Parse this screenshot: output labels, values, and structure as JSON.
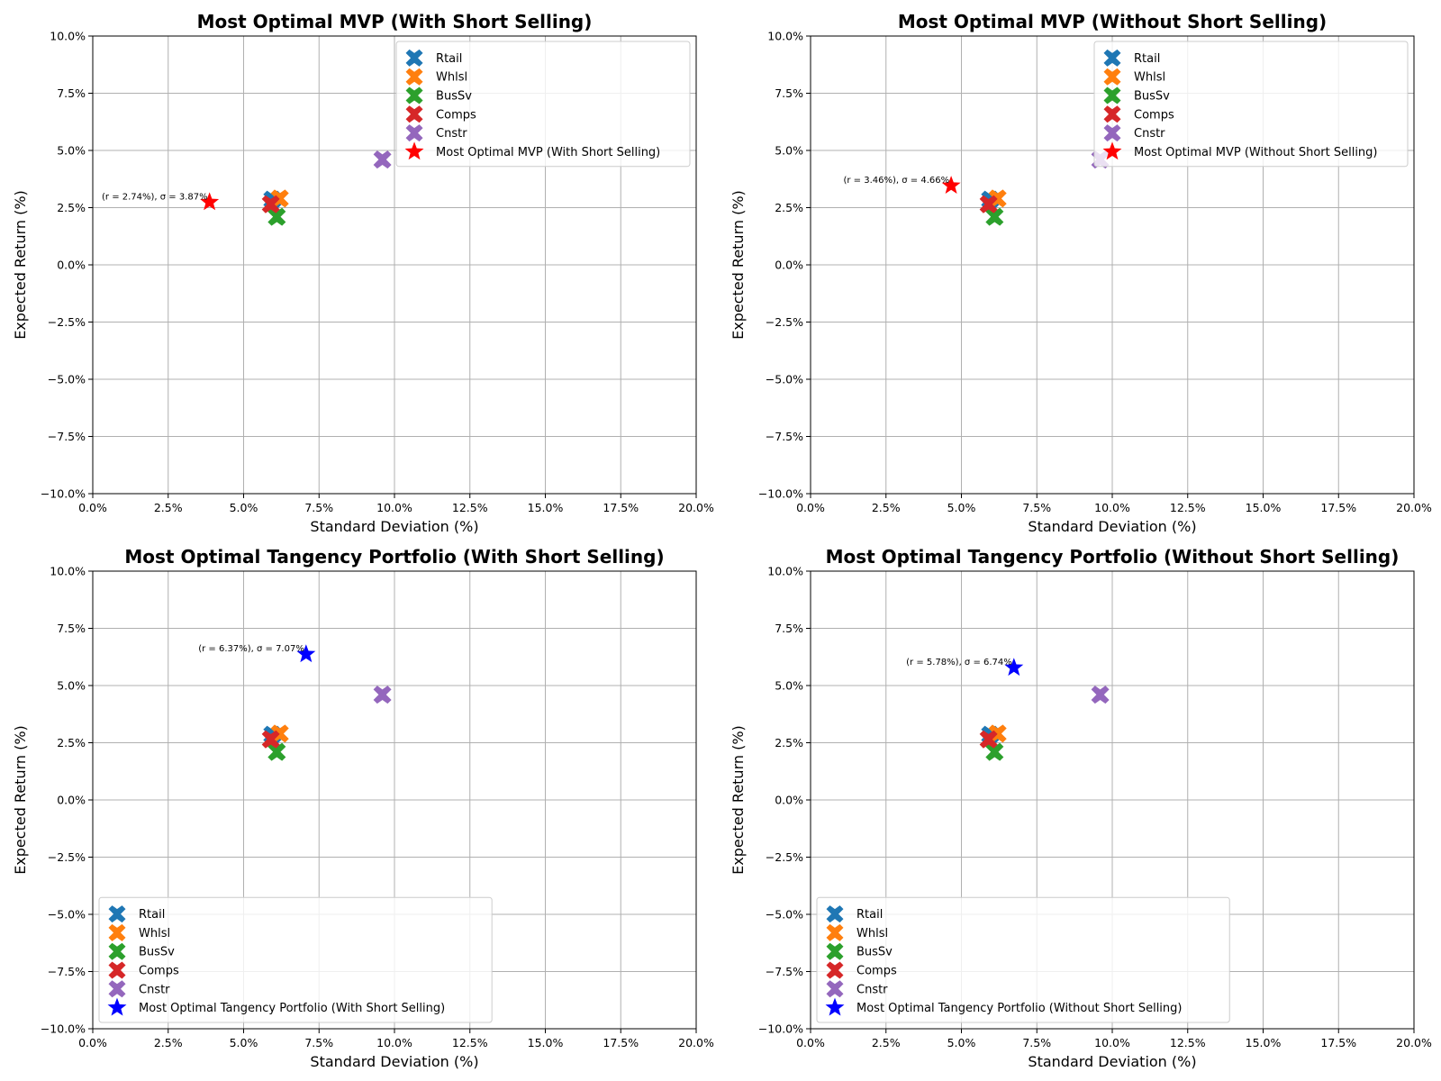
{
  "chart_data": [
    {
      "type": "scatter",
      "title": "Most Optimal MVP (With Short Selling)",
      "xlabel": "Standard Deviation (%)",
      "ylabel": "Expected Return (%)",
      "xlim": [
        0,
        20
      ],
      "ylim": [
        -10,
        10
      ],
      "xticks": [
        "0.0%",
        "2.5%",
        "5.0%",
        "7.5%",
        "10.0%",
        "12.5%",
        "15.0%",
        "17.5%",
        "20.0%"
      ],
      "yticks": [
        "10.0%",
        "7.5%",
        "5.0%",
        "2.5%",
        "0.0%",
        "−2.5%",
        "−5.0%",
        "−7.5%",
        "−10.0%"
      ],
      "grid": true,
      "legend_position": "top-right",
      "series": [
        {
          "name": "Rtail",
          "marker": "X",
          "color": "#1f77b4",
          "x": [
            5.95
          ],
          "y": [
            2.85
          ]
        },
        {
          "name": "Whlsl",
          "marker": "X",
          "color": "#ff7f0e",
          "x": [
            6.2
          ],
          "y": [
            2.9
          ]
        },
        {
          "name": "BusSv",
          "marker": "X",
          "color": "#2ca02c",
          "x": [
            6.1
          ],
          "y": [
            2.1
          ]
        },
        {
          "name": "Comps",
          "marker": "X",
          "color": "#d62728",
          "x": [
            5.9
          ],
          "y": [
            2.65
          ]
        },
        {
          "name": "Cnstr",
          "marker": "X",
          "color": "#9467bd",
          "x": [
            9.6
          ],
          "y": [
            4.6
          ]
        },
        {
          "name": "Most Optimal MVP (With Short Selling)",
          "marker": "star",
          "color": "#ff0000",
          "x": [
            3.87
          ],
          "y": [
            2.74
          ]
        }
      ],
      "annotation": {
        "text": "(r = 2.74%), σ = 3.87%",
        "x": 3.87,
        "y": 2.74
      }
    },
    {
      "type": "scatter",
      "title": "Most Optimal MVP (Without Short Selling)",
      "xlabel": "Standard Deviation (%)",
      "ylabel": "Expected Return (%)",
      "xlim": [
        0,
        20
      ],
      "ylim": [
        -10,
        10
      ],
      "xticks": [
        "0.0%",
        "2.5%",
        "5.0%",
        "7.5%",
        "10.0%",
        "12.5%",
        "15.0%",
        "17.5%",
        "20.0%"
      ],
      "yticks": [
        "10.0%",
        "7.5%",
        "5.0%",
        "2.5%",
        "0.0%",
        "−2.5%",
        "−5.0%",
        "−7.5%",
        "−10.0%"
      ],
      "grid": true,
      "legend_position": "top-right",
      "series": [
        {
          "name": "Rtail",
          "marker": "X",
          "color": "#1f77b4",
          "x": [
            5.95
          ],
          "y": [
            2.85
          ]
        },
        {
          "name": "Whlsl",
          "marker": "X",
          "color": "#ff7f0e",
          "x": [
            6.2
          ],
          "y": [
            2.9
          ]
        },
        {
          "name": "BusSv",
          "marker": "X",
          "color": "#2ca02c",
          "x": [
            6.1
          ],
          "y": [
            2.1
          ]
        },
        {
          "name": "Comps",
          "marker": "X",
          "color": "#d62728",
          "x": [
            5.9
          ],
          "y": [
            2.65
          ]
        },
        {
          "name": "Cnstr",
          "marker": "X",
          "color": "#9467bd",
          "x": [
            9.6
          ],
          "y": [
            4.6
          ]
        },
        {
          "name": "Most Optimal MVP (Without Short Selling)",
          "marker": "star",
          "color": "#ff0000",
          "x": [
            4.66
          ],
          "y": [
            3.46
          ]
        }
      ],
      "annotation": {
        "text": "(r = 3.46%), σ = 4.66%",
        "x": 4.66,
        "y": 3.46
      }
    },
    {
      "type": "scatter",
      "title": "Most Optimal Tangency Portfolio (With Short Selling)",
      "xlabel": "Standard Deviation (%)",
      "ylabel": "Expected Return (%)",
      "xlim": [
        0,
        20
      ],
      "ylim": [
        -10,
        10
      ],
      "xticks": [
        "0.0%",
        "2.5%",
        "5.0%",
        "7.5%",
        "10.0%",
        "12.5%",
        "15.0%",
        "17.5%",
        "20.0%"
      ],
      "yticks": [
        "10.0%",
        "7.5%",
        "5.0%",
        "2.5%",
        "0.0%",
        "−2.5%",
        "−5.0%",
        "−7.5%",
        "−10.0%"
      ],
      "grid": true,
      "legend_position": "bottom-left",
      "series": [
        {
          "name": "Rtail",
          "marker": "X",
          "color": "#1f77b4",
          "x": [
            5.95
          ],
          "y": [
            2.85
          ]
        },
        {
          "name": "Whlsl",
          "marker": "X",
          "color": "#ff7f0e",
          "x": [
            6.2
          ],
          "y": [
            2.9
          ]
        },
        {
          "name": "BusSv",
          "marker": "X",
          "color": "#2ca02c",
          "x": [
            6.1
          ],
          "y": [
            2.1
          ]
        },
        {
          "name": "Comps",
          "marker": "X",
          "color": "#d62728",
          "x": [
            5.9
          ],
          "y": [
            2.65
          ]
        },
        {
          "name": "Cnstr",
          "marker": "X",
          "color": "#9467bd",
          "x": [
            9.6
          ],
          "y": [
            4.6
          ]
        },
        {
          "name": "Most Optimal Tangency Portfolio (With Short Selling)",
          "marker": "star",
          "color": "#0000ff",
          "x": [
            7.07
          ],
          "y": [
            6.37
          ]
        }
      ],
      "annotation": {
        "text": "(r = 6.37%), σ = 7.07%",
        "x": 7.07,
        "y": 6.37
      }
    },
    {
      "type": "scatter",
      "title": "Most Optimal Tangency Portfolio (Without Short Selling)",
      "xlabel": "Standard Deviation (%)",
      "ylabel": "Expected Return (%)",
      "xlim": [
        0,
        20
      ],
      "ylim": [
        -10,
        10
      ],
      "xticks": [
        "0.0%",
        "2.5%",
        "5.0%",
        "7.5%",
        "10.0%",
        "12.5%",
        "15.0%",
        "17.5%",
        "20.0%"
      ],
      "yticks": [
        "10.0%",
        "7.5%",
        "5.0%",
        "2.5%",
        "0.0%",
        "−2.5%",
        "−5.0%",
        "−7.5%",
        "−10.0%"
      ],
      "grid": true,
      "legend_position": "bottom-left",
      "series": [
        {
          "name": "Rtail",
          "marker": "X",
          "color": "#1f77b4",
          "x": [
            5.95
          ],
          "y": [
            2.85
          ]
        },
        {
          "name": "Whlsl",
          "marker": "X",
          "color": "#ff7f0e",
          "x": [
            6.2
          ],
          "y": [
            2.9
          ]
        },
        {
          "name": "BusSv",
          "marker": "X",
          "color": "#2ca02c",
          "x": [
            6.1
          ],
          "y": [
            2.1
          ]
        },
        {
          "name": "Comps",
          "marker": "X",
          "color": "#d62728",
          "x": [
            5.9
          ],
          "y": [
            2.65
          ]
        },
        {
          "name": "Cnstr",
          "marker": "X",
          "color": "#9467bd",
          "x": [
            9.6
          ],
          "y": [
            4.6
          ]
        },
        {
          "name": "Most Optimal Tangency Portfolio (Without Short Selling)",
          "marker": "star",
          "color": "#0000ff",
          "x": [
            6.74
          ],
          "y": [
            5.78
          ]
        }
      ],
      "annotation": {
        "text": "(r = 5.78%), σ = 6.74%",
        "x": 6.74,
        "y": 5.78
      }
    }
  ]
}
